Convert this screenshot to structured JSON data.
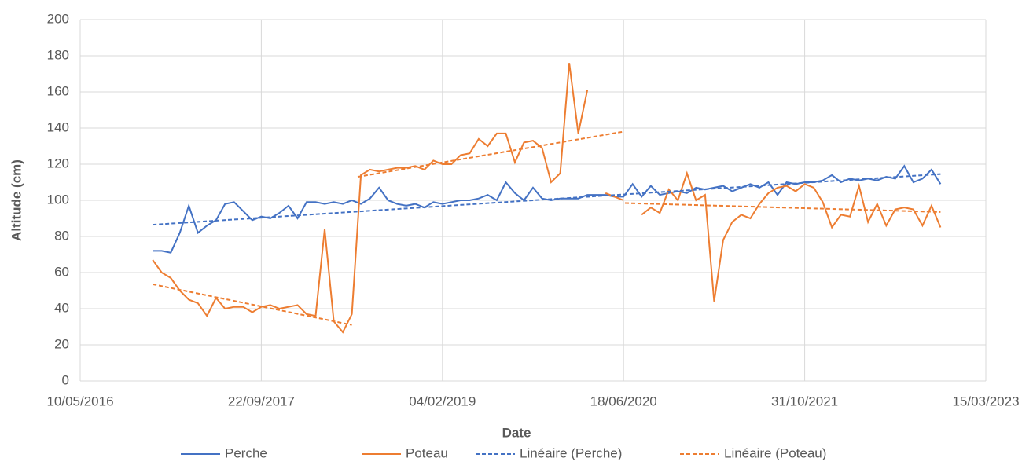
{
  "chart_data": {
    "type": "line",
    "xlabel": "Date",
    "ylabel": "Altitude (cm)",
    "x": [
      42700,
      42725,
      42750,
      42775,
      42800,
      42825,
      42850,
      42875,
      42900,
      42925,
      42950,
      42975,
      43000,
      43025,
      43050,
      43075,
      43100,
      43125,
      43150,
      43175,
      43200,
      43225,
      43250,
      43275,
      43300,
      43325,
      43350,
      43375,
      43400,
      43425,
      43450,
      43475,
      43500,
      43525,
      43550,
      43575,
      43600,
      43625,
      43650,
      43675,
      43700,
      43725,
      43750,
      43775,
      43800,
      43825,
      43850,
      43875,
      43900,
      43925,
      43950,
      43975,
      44000,
      44025,
      44050,
      44075,
      44100,
      44125,
      44150,
      44175,
      44200,
      44225,
      44250,
      44275,
      44300,
      44325,
      44350,
      44375,
      44400,
      44425,
      44450,
      44475,
      44500,
      44525,
      44550,
      44575,
      44600,
      44625,
      44650,
      44675,
      44700,
      44725,
      44750,
      44775,
      44800,
      44825,
      44850,
      44875
    ],
    "series": [
      {
        "name": "Perche",
        "color": "#4472c4",
        "dash": false,
        "values": [
          72,
          72,
          71,
          82,
          97,
          82,
          86,
          89,
          98,
          99,
          94,
          89,
          91,
          90,
          93,
          97,
          90,
          99,
          99,
          98,
          99,
          98,
          100,
          98,
          101,
          107,
          100,
          98,
          97,
          98,
          96,
          99,
          98,
          99,
          100,
          100,
          101,
          103,
          100,
          110,
          104,
          100,
          107,
          101,
          100,
          101,
          101,
          101,
          103,
          103,
          103,
          102,
          102,
          109,
          102,
          108,
          103,
          104,
          105,
          104,
          107,
          106,
          107,
          108,
          105,
          107,
          109,
          107,
          110,
          103,
          110,
          109,
          110,
          110,
          111,
          114,
          110,
          112,
          111,
          112,
          111,
          113,
          112,
          119,
          110,
          112,
          117,
          109
        ]
      },
      {
        "name": "Poteau",
        "color": "#ed7d31",
        "dash": false,
        "values": [
          67,
          60,
          57,
          50,
          45,
          43,
          36,
          46,
          40,
          41,
          41,
          38,
          41,
          42,
          40,
          41,
          42,
          37,
          36,
          84,
          33,
          27,
          37,
          114,
          117,
          116,
          117,
          118,
          118,
          119,
          117,
          122,
          120,
          120,
          125,
          126,
          134,
          130,
          137,
          137,
          121,
          132,
          133,
          129,
          110,
          115,
          176,
          137,
          161,
          null,
          104,
          102,
          100,
          null,
          92,
          96,
          93,
          106,
          100,
          115,
          100,
          103,
          44,
          78,
          88,
          92,
          90,
          98,
          104,
          107,
          108,
          105,
          109,
          107,
          99,
          85,
          92,
          91,
          108,
          88,
          98,
          86,
          95,
          96,
          95,
          86,
          97,
          85
        ]
      },
      {
        "name": "Linéaire (Perche)",
        "color": "#4472c4",
        "dash": true,
        "x": [
          42700,
          44875
        ],
        "values": [
          86.5,
          114.5
        ]
      },
      {
        "name": "Linéaire (Poteau)",
        "color": "#ed7d31",
        "dash": true,
        "x": [
          42700,
          43250,
          43258,
          43266,
          44000,
          44002,
          44004,
          44875
        ],
        "values": [
          53.5,
          31,
          null,
          113,
          138,
          null,
          98.5,
          93.5
        ]
      }
    ],
    "xlim": [
      42500,
      45000
    ],
    "xticks": [
      {
        "value": 42500,
        "label": "10/05/2016"
      },
      {
        "value": 43000,
        "label": "22/09/2017"
      },
      {
        "value": 43500,
        "label": "04/02/2019"
      },
      {
        "value": 44000,
        "label": "18/06/2020"
      },
      {
        "value": 44500,
        "label": "31/10/2021"
      },
      {
        "value": 45000,
        "label": "15/03/2023"
      }
    ],
    "ylim": [
      0,
      200
    ],
    "yticks": [
      0,
      20,
      40,
      60,
      80,
      100,
      120,
      140,
      160,
      180,
      200
    ],
    "grid": true,
    "legend": "bottom"
  }
}
